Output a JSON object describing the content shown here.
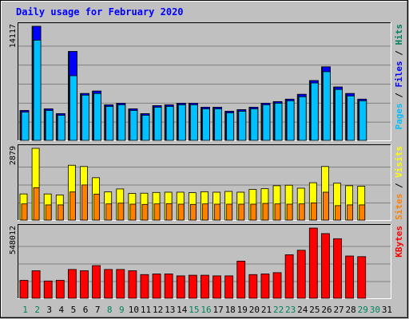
{
  "chart_data": {
    "type": "bar",
    "title": "Daily usage for February 2020",
    "categories": [
      "1",
      "2",
      "3",
      "4",
      "5",
      "6",
      "7",
      "8",
      "9",
      "10",
      "11",
      "12",
      "13",
      "14",
      "15",
      "16",
      "17",
      "18",
      "19",
      "20",
      "21",
      "22",
      "23",
      "24",
      "25",
      "26",
      "27",
      "28",
      "29",
      "30",
      "31"
    ],
    "weekend_days": [
      "1",
      "2",
      "8",
      "9",
      "15",
      "16",
      "22",
      "23",
      "29",
      "30"
    ],
    "panels": [
      {
        "id": "hits-files-pages",
        "y_tick_label": "14117",
        "ylim": [
          0,
          14117
        ],
        "axis_label_parts": [
          "Pages",
          "Files",
          "Hits"
        ],
        "series": [
          {
            "name": "Hits",
            "values": [
              3700,
              14117,
              3900,
              3300,
              11000,
              5800,
              6100,
              4400,
              4600,
              3900,
              3300,
              4300,
              4400,
              4600,
              4600,
              4100,
              4100,
              3600,
              3800,
              4100,
              4600,
              4800,
              5100,
              5700,
              7400,
              9100,
              6600,
              5800,
              5100,
              0,
              0
            ]
          },
          {
            "name": "Files",
            "values": [
              3700,
              14117,
              3900,
              3300,
              11000,
              5800,
              6100,
              4400,
              4600,
              3900,
              3300,
              4300,
              4400,
              4600,
              4600,
              4100,
              4100,
              3600,
              3800,
              4100,
              4600,
              4800,
              5100,
              5700,
              7400,
              9100,
              6600,
              5800,
              5100,
              0,
              0
            ]
          },
          {
            "name": "Pages",
            "values": [
              3500,
              12400,
              3700,
              3100,
              8000,
              5600,
              5800,
              4200,
              4400,
              3700,
              3100,
              4100,
              4200,
              4400,
              4400,
              3900,
              3900,
              3400,
              3600,
              3900,
              4400,
              4600,
              4900,
              5400,
              7100,
              8500,
              6300,
              5500,
              4900,
              0,
              0
            ]
          }
        ]
      },
      {
        "id": "visits-sites",
        "y_tick_label": "2879",
        "ylim": [
          0,
          2879
        ],
        "axis_label_parts": [
          "Sites",
          "Visits"
        ],
        "series": [
          {
            "name": "Visits",
            "values": [
              1050,
              2879,
              1050,
              1010,
              2200,
              2150,
              1700,
              1130,
              1250,
              1070,
              1080,
              1110,
              1120,
              1120,
              1100,
              1140,
              1120,
              1150,
              1120,
              1230,
              1260,
              1380,
              1400,
              1280,
              1500,
              2150,
              1480,
              1380,
              1360,
              0,
              0
            ]
          },
          {
            "name": "Sites",
            "values": [
              650,
              1300,
              610,
              610,
              1130,
              1410,
              1040,
              650,
              680,
              640,
              630,
              650,
              660,
              640,
              630,
              650,
              640,
              640,
              640,
              640,
              670,
              650,
              640,
              650,
              690,
              1120,
              580,
              610,
              610,
              0,
              0
            ]
          }
        ]
      },
      {
        "id": "kbytes",
        "y_tick_label": "548012",
        "ylim": [
          0,
          548012
        ],
        "axis_label_parts": [
          "KBytes"
        ],
        "series": [
          {
            "name": "KBytes",
            "values": [
              140000,
              215000,
              135000,
              140000,
              225000,
              215000,
              255000,
              225000,
              225000,
              215000,
              185000,
              190000,
              190000,
              175000,
              180000,
              180000,
              175000,
              175000,
              290000,
              185000,
              190000,
              200000,
              340000,
              375000,
              548000,
              505000,
              465000,
              330000,
              325000,
              0,
              0
            ]
          }
        ]
      }
    ],
    "colors": {
      "hits": "#00805C",
      "files": "#0000FF",
      "pages": "#00C0FF",
      "visits": "#FFFF00",
      "sites": "#FF8000",
      "kbytes": "#FF0000",
      "plot_bg": "#C0C0C0",
      "title": "#0000FF",
      "weekday_label": "#000000",
      "weekend_label": "#00805C"
    }
  }
}
